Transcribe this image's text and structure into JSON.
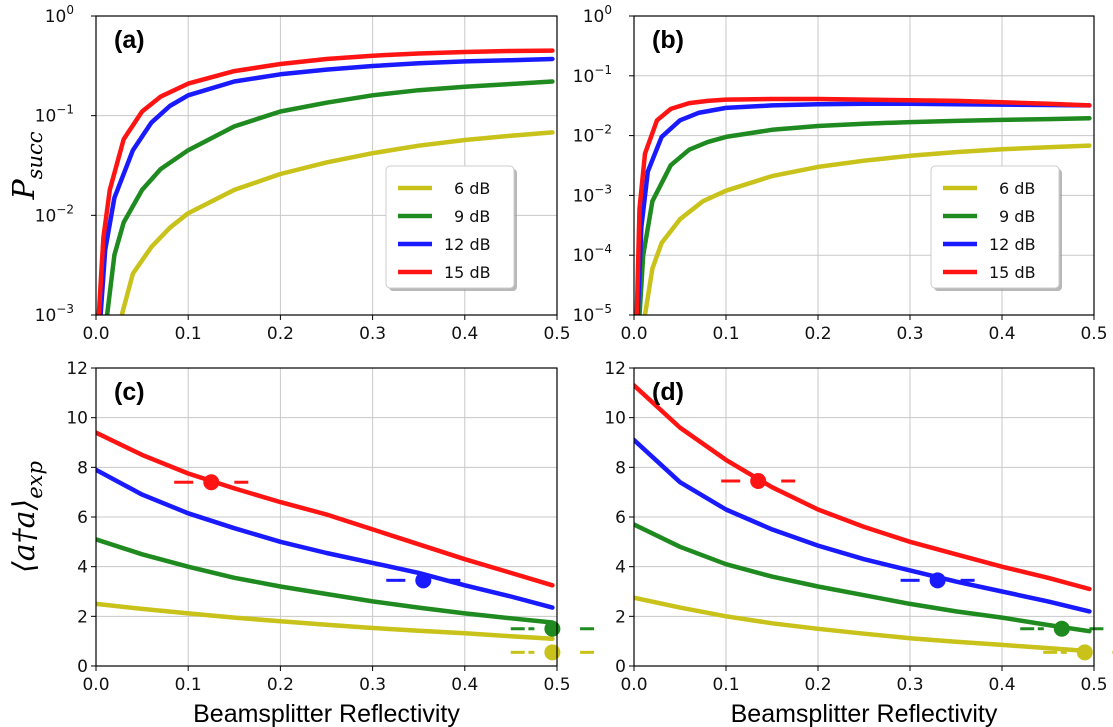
{
  "chart_data": [
    {
      "panel": "(a)",
      "type": "line",
      "yscale": "log",
      "xlim": [
        0.0,
        0.5
      ],
      "ylim": [
        0.001,
        1
      ],
      "x_ticks": [
        "0.0",
        "0.1",
        "0.2",
        "0.3",
        "0.4",
        "0.5"
      ],
      "y_ticks": [
        {
          "base": "10",
          "exp": "0"
        },
        {
          "base": "10",
          "exp": "−1"
        },
        {
          "base": "10",
          "exp": "−2"
        },
        {
          "base": "10",
          "exp": "−3"
        }
      ],
      "ylabel": {
        "main": "P",
        "sub": "succ"
      },
      "xlabel": "",
      "legend": {
        "loc": "lower-right",
        "entries": [
          "6 dB",
          "9 dB",
          "12 dB",
          "15 dB"
        ]
      },
      "series": [
        {
          "name": "6 dB",
          "color": "#c8c21a",
          "x": [
            0.028,
            0.04,
            0.06,
            0.08,
            0.1,
            0.15,
            0.2,
            0.25,
            0.3,
            0.35,
            0.4,
            0.45,
            0.495
          ],
          "y": [
            0.001,
            0.0026,
            0.0048,
            0.0075,
            0.0105,
            0.018,
            0.026,
            0.034,
            0.042,
            0.05,
            0.057,
            0.063,
            0.068
          ]
        },
        {
          "name": "9 dB",
          "color": "#1f8a1f",
          "x": [
            0.012,
            0.02,
            0.03,
            0.05,
            0.07,
            0.1,
            0.15,
            0.2,
            0.25,
            0.3,
            0.35,
            0.4,
            0.45,
            0.495
          ],
          "y": [
            0.001,
            0.004,
            0.0085,
            0.018,
            0.029,
            0.045,
            0.078,
            0.11,
            0.135,
            0.16,
            0.18,
            0.195,
            0.208,
            0.22
          ]
        },
        {
          "name": "12 dB",
          "color": "#1a1aff",
          "x": [
            0.005,
            0.01,
            0.02,
            0.04,
            0.06,
            0.08,
            0.1,
            0.15,
            0.2,
            0.25,
            0.3,
            0.35,
            0.4,
            0.45,
            0.495
          ],
          "y": [
            0.001,
            0.0045,
            0.015,
            0.045,
            0.085,
            0.125,
            0.16,
            0.22,
            0.26,
            0.29,
            0.315,
            0.335,
            0.35,
            0.36,
            0.37
          ]
        },
        {
          "name": "15 dB",
          "color": "#ff1414",
          "x": [
            0.003,
            0.008,
            0.015,
            0.03,
            0.05,
            0.07,
            0.1,
            0.15,
            0.2,
            0.25,
            0.3,
            0.35,
            0.4,
            0.45,
            0.495
          ],
          "y": [
            0.001,
            0.006,
            0.018,
            0.058,
            0.11,
            0.155,
            0.21,
            0.28,
            0.33,
            0.37,
            0.4,
            0.42,
            0.435,
            0.445,
            0.45
          ]
        }
      ]
    },
    {
      "panel": "(b)",
      "type": "line",
      "yscale": "log",
      "xlim": [
        0.0,
        0.5
      ],
      "ylim": [
        1e-05,
        1
      ],
      "x_ticks": [
        "0.0",
        "0.1",
        "0.2",
        "0.3",
        "0.4",
        "0.5"
      ],
      "y_ticks": [
        {
          "base": "10",
          "exp": "0"
        },
        {
          "base": "10",
          "exp": "−1"
        },
        {
          "base": "10",
          "exp": "−2"
        },
        {
          "base": "10",
          "exp": "−3"
        },
        {
          "base": "10",
          "exp": "−4"
        },
        {
          "base": "10",
          "exp": "−5"
        }
      ],
      "xlabel": "",
      "legend": {
        "loc": "lower-right",
        "entries": [
          "6 dB",
          "9 dB",
          "12 dB",
          "15 dB"
        ]
      },
      "series": [
        {
          "name": "6 dB",
          "color": "#c8c21a",
          "x": [
            0.012,
            0.02,
            0.03,
            0.05,
            0.075,
            0.1,
            0.15,
            0.2,
            0.25,
            0.3,
            0.35,
            0.4,
            0.45,
            0.495
          ],
          "y": [
            1e-05,
            6e-05,
            0.00016,
            0.0004,
            0.0008,
            0.0012,
            0.0021,
            0.003,
            0.0038,
            0.0046,
            0.0053,
            0.0059,
            0.0064,
            0.0068
          ]
        },
        {
          "name": "9 dB",
          "color": "#1f8a1f",
          "x": [
            0.006,
            0.01,
            0.02,
            0.04,
            0.06,
            0.08,
            0.1,
            0.15,
            0.2,
            0.25,
            0.3,
            0.35,
            0.4,
            0.45,
            0.495
          ],
          "y": [
            1e-05,
            0.0001,
            0.0008,
            0.0032,
            0.0058,
            0.0078,
            0.0095,
            0.0125,
            0.0145,
            0.0158,
            0.0168,
            0.0176,
            0.0183,
            0.0189,
            0.0195
          ]
        },
        {
          "name": "12 dB",
          "color": "#1a1aff",
          "x": [
            0.004,
            0.008,
            0.015,
            0.03,
            0.05,
            0.07,
            0.1,
            0.15,
            0.2,
            0.25,
            0.3,
            0.35,
            0.4,
            0.45,
            0.495
          ],
          "y": [
            1e-05,
            0.0003,
            0.0025,
            0.0095,
            0.018,
            0.024,
            0.029,
            0.032,
            0.0335,
            0.034,
            0.034,
            0.0335,
            0.033,
            0.0325,
            0.032
          ]
        },
        {
          "name": "15 dB",
          "color": "#ff1414",
          "x": [
            0.003,
            0.006,
            0.012,
            0.025,
            0.04,
            0.06,
            0.08,
            0.1,
            0.15,
            0.2,
            0.25,
            0.3,
            0.35,
            0.4,
            0.45,
            0.495
          ],
          "y": [
            1e-05,
            0.0006,
            0.005,
            0.018,
            0.028,
            0.035,
            0.038,
            0.04,
            0.041,
            0.041,
            0.04,
            0.039,
            0.038,
            0.036,
            0.034,
            0.032
          ]
        }
      ]
    },
    {
      "panel": "(c)",
      "type": "line",
      "yscale": "linear",
      "xlim": [
        0.0,
        0.5
      ],
      "ylim": [
        0,
        12
      ],
      "x_ticks": [
        "0.0",
        "0.1",
        "0.2",
        "0.3",
        "0.4",
        "0.5"
      ],
      "y_ticks": [
        "0",
        "2",
        "4",
        "6",
        "8",
        "10",
        "12"
      ],
      "ylabel": {
        "main": "⟨a†a⟩",
        "sub": "exp"
      },
      "xlabel": "Beamsplitter Reflectivity",
      "series": [
        {
          "name": "6 dB",
          "color": "#c8c21a",
          "x": [
            0,
            0.05,
            0.1,
            0.15,
            0.2,
            0.25,
            0.3,
            0.35,
            0.4,
            0.45,
            0.495
          ],
          "y": [
            2.5,
            2.3,
            2.12,
            1.95,
            1.8,
            1.66,
            1.53,
            1.42,
            1.32,
            1.2,
            1.1
          ],
          "marker": {
            "x": 0.495,
            "y": 0.55,
            "err": 0.03
          }
        },
        {
          "name": "9 dB",
          "color": "#1f8a1f",
          "x": [
            0,
            0.05,
            0.1,
            0.15,
            0.2,
            0.25,
            0.3,
            0.35,
            0.4,
            0.45,
            0.495
          ],
          "y": [
            5.1,
            4.5,
            4.0,
            3.55,
            3.2,
            2.9,
            2.6,
            2.35,
            2.12,
            1.92,
            1.75
          ],
          "marker": {
            "x": 0.495,
            "y": 1.5,
            "err": 0.03
          }
        },
        {
          "name": "12 dB",
          "color": "#1a1aff",
          "x": [
            0,
            0.05,
            0.1,
            0.15,
            0.2,
            0.25,
            0.3,
            0.35,
            0.4,
            0.45,
            0.495
          ],
          "y": [
            7.9,
            6.9,
            6.15,
            5.55,
            5.0,
            4.55,
            4.15,
            3.75,
            3.25,
            2.8,
            2.35
          ],
          "marker": {
            "x": 0.355,
            "y": 3.45,
            "err": 0.025
          }
        },
        {
          "name": "15 dB",
          "color": "#ff1414",
          "x": [
            0,
            0.05,
            0.1,
            0.15,
            0.2,
            0.25,
            0.3,
            0.35,
            0.4,
            0.45,
            0.495
          ],
          "y": [
            9.4,
            8.5,
            7.75,
            7.15,
            6.6,
            6.1,
            5.5,
            4.9,
            4.3,
            3.75,
            3.25
          ],
          "marker": {
            "x": 0.125,
            "y": 7.4,
            "err": 0.025
          }
        }
      ]
    },
    {
      "panel": "(d)",
      "type": "line",
      "yscale": "linear",
      "xlim": [
        0.0,
        0.5
      ],
      "ylim": [
        0,
        12
      ],
      "x_ticks": [
        "0.0",
        "0.1",
        "0.2",
        "0.3",
        "0.4",
        "0.5"
      ],
      "y_ticks": [
        "0",
        "2",
        "4",
        "6",
        "8",
        "10",
        "12"
      ],
      "xlabel": "Beamsplitter Reflectivity",
      "series": [
        {
          "name": "6 dB",
          "color": "#c8c21a",
          "x": [
            0,
            0.05,
            0.1,
            0.15,
            0.2,
            0.25,
            0.3,
            0.35,
            0.4,
            0.45,
            0.495
          ],
          "y": [
            2.75,
            2.35,
            2.0,
            1.72,
            1.5,
            1.3,
            1.12,
            0.98,
            0.85,
            0.72,
            0.6
          ],
          "marker": {
            "x": 0.49,
            "y": 0.55,
            "err": 0.03
          }
        },
        {
          "name": "9 dB",
          "color": "#1f8a1f",
          "x": [
            0,
            0.05,
            0.1,
            0.15,
            0.2,
            0.25,
            0.3,
            0.35,
            0.4,
            0.45,
            0.495
          ],
          "y": [
            5.7,
            4.8,
            4.1,
            3.6,
            3.2,
            2.85,
            2.5,
            2.2,
            1.95,
            1.65,
            1.4
          ],
          "marker": {
            "x": 0.465,
            "y": 1.5,
            "err": 0.03
          }
        },
        {
          "name": "12 dB",
          "color": "#1a1aff",
          "x": [
            0,
            0.05,
            0.1,
            0.15,
            0.2,
            0.25,
            0.3,
            0.35,
            0.4,
            0.45,
            0.495
          ],
          "y": [
            9.1,
            7.4,
            6.3,
            5.5,
            4.85,
            4.3,
            3.85,
            3.4,
            3.0,
            2.6,
            2.2
          ],
          "marker": {
            "x": 0.33,
            "y": 3.45,
            "err": 0.025
          }
        },
        {
          "name": "15 dB",
          "color": "#ff1414",
          "x": [
            0,
            0.05,
            0.1,
            0.15,
            0.2,
            0.25,
            0.3,
            0.35,
            0.4,
            0.45,
            0.495
          ],
          "y": [
            11.3,
            9.6,
            8.3,
            7.2,
            6.3,
            5.6,
            5.0,
            4.5,
            4.0,
            3.55,
            3.1
          ],
          "marker": {
            "x": 0.135,
            "y": 7.45,
            "err": 0.025
          }
        }
      ]
    }
  ]
}
